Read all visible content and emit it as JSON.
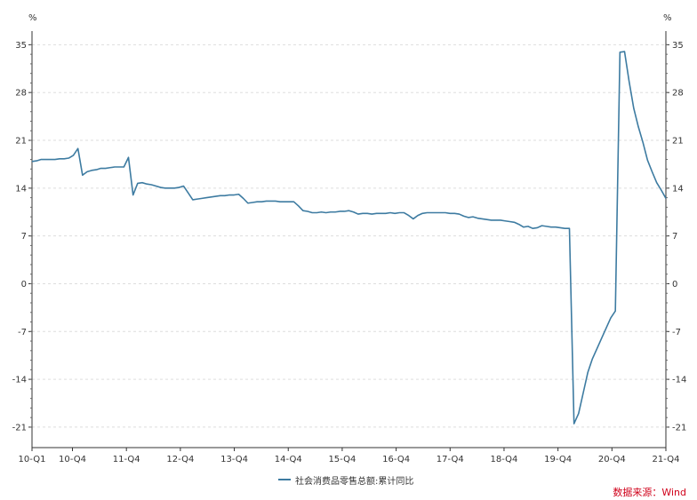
{
  "chart_data": {
    "type": "line",
    "y_unit_label": "%",
    "ylim": [
      -24,
      37
    ],
    "yticks": [
      35,
      28,
      21,
      14,
      7,
      0,
      -7,
      -14,
      -21
    ],
    "x_tick_labels": [
      "10-Q1",
      "10-Q4",
      "11-Q4",
      "12-Q4",
      "13-Q4",
      "14-Q4",
      "15-Q4",
      "16-Q4",
      "17-Q4",
      "18-Q4",
      "19-Q4",
      "20-Q4",
      "21-Q4"
    ],
    "grid": true,
    "legend_position": "bottom",
    "series": [
      {
        "name": "社会消费品零售总额:累计同比",
        "color": "#3d7ba1",
        "values": [
          17.9,
          18.0,
          18.2,
          18.2,
          18.2,
          18.2,
          18.3,
          18.3,
          18.4,
          18.8,
          19.8,
          15.9,
          16.4,
          16.6,
          16.7,
          16.9,
          16.9,
          17.0,
          17.1,
          17.1,
          17.1,
          18.5,
          13.0,
          14.7,
          14.8,
          14.6,
          14.5,
          14.3,
          14.1,
          14.0,
          14.0,
          14.0,
          14.1,
          14.3,
          13.3,
          12.3,
          12.4,
          12.5,
          12.6,
          12.7,
          12.8,
          12.9,
          12.9,
          13.0,
          13.0,
          13.1,
          12.5,
          11.8,
          11.9,
          12.0,
          12.0,
          12.1,
          12.1,
          12.1,
          12.0,
          12.0,
          12.0,
          12.0,
          11.4,
          10.7,
          10.6,
          10.4,
          10.4,
          10.5,
          10.4,
          10.5,
          10.5,
          10.6,
          10.6,
          10.7,
          10.5,
          10.2,
          10.3,
          10.3,
          10.2,
          10.3,
          10.3,
          10.3,
          10.4,
          10.3,
          10.4,
          10.4,
          10.0,
          9.5,
          10.0,
          10.3,
          10.4,
          10.4,
          10.4,
          10.4,
          10.4,
          10.3,
          10.3,
          10.2,
          9.9,
          9.7,
          9.8,
          9.6,
          9.5,
          9.4,
          9.3,
          9.3,
          9.3,
          9.2,
          9.1,
          9.0,
          8.7,
          8.3,
          8.4,
          8.1,
          8.2,
          8.5,
          8.4,
          8.3,
          8.3,
          8.2,
          8.1,
          8.1,
          -20.5,
          -19.0,
          -16.0,
          -13.0,
          -11.0,
          -9.5,
          -8.0,
          -6.5,
          -5.0,
          -4.0,
          33.9,
          34.0,
          29.6,
          25.7,
          23.0,
          20.7,
          18.1,
          16.4,
          14.8,
          13.7,
          12.5
        ]
      }
    ]
  },
  "source_text": "数据来源：Wind"
}
